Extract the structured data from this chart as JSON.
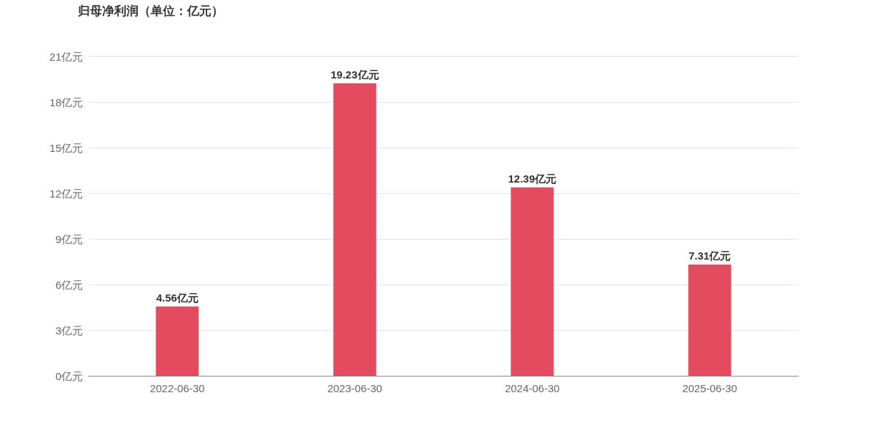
{
  "chart_data": {
    "type": "bar",
    "title": "归母净利润（单位：亿元）",
    "categories": [
      "2022-06-30",
      "2023-06-30",
      "2024-06-30",
      "2025-06-30"
    ],
    "values": [
      4.56,
      19.23,
      12.39,
      7.31
    ],
    "color": "#e54b5f",
    "value_labels": [
      "4.56亿元",
      "19.23亿元",
      "12.39亿元",
      "7.31亿元"
    ],
    "ylim": [
      0,
      21
    ],
    "yticks": [
      {
        "value": 0,
        "label": "0亿元"
      },
      {
        "value": 3,
        "label": "3亿元"
      },
      {
        "value": 6,
        "label": "6亿元"
      },
      {
        "value": 9,
        "label": "9亿元"
      },
      {
        "value": 12,
        "label": "12亿元"
      },
      {
        "value": 15,
        "label": "15亿元"
      },
      {
        "value": 18,
        "label": "18亿元"
      },
      {
        "value": 21,
        "label": "21亿元"
      }
    ],
    "grid": "y"
  }
}
